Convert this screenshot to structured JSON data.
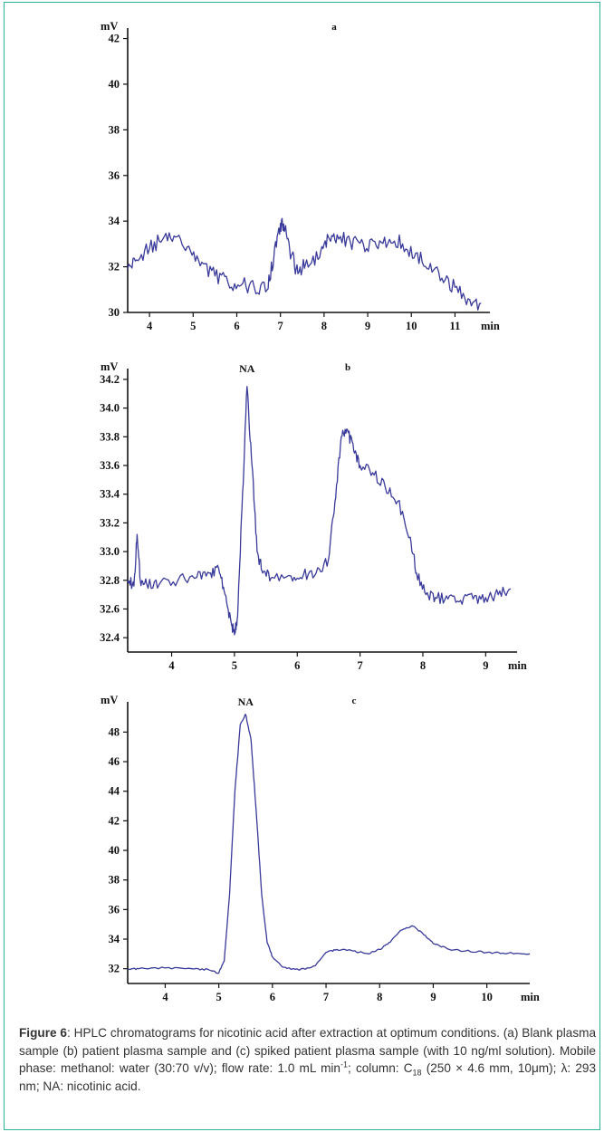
{
  "chart_data": [
    {
      "type": "line",
      "title": "a",
      "y_unit": "mV",
      "x_unit": "min",
      "xlim": [
        3.5,
        11.8
      ],
      "ylim": [
        30,
        42.3
      ],
      "x_ticks": [
        4,
        5,
        6,
        7,
        8,
        9,
        10,
        11
      ],
      "y_ticks": [
        30,
        32,
        34,
        36,
        38,
        40,
        42
      ],
      "annotations": [],
      "series": [
        {
          "x": [
            3.5,
            3.7,
            4.0,
            4.3,
            4.6,
            4.9,
            5.2,
            5.5,
            5.8,
            6.1,
            6.4,
            6.7,
            6.85,
            7.0,
            7.1,
            7.25,
            7.4,
            7.6,
            7.9,
            8.1,
            8.3,
            8.6,
            8.9,
            9.2,
            9.5,
            9.8,
            10.1,
            10.4,
            10.7,
            11.0,
            11.3,
            11.6
          ],
          "y": [
            31.9,
            32.3,
            32.8,
            33.2,
            33.3,
            32.9,
            32.2,
            31.6,
            31.3,
            31.2,
            31.1,
            31.0,
            32.4,
            33.9,
            33.6,
            32.5,
            31.7,
            32.3,
            32.4,
            33.3,
            33.4,
            33.1,
            33.0,
            32.9,
            33.2,
            33.0,
            32.6,
            31.9,
            31.5,
            31.1,
            30.6,
            30.4
          ]
        }
      ]
    },
    {
      "type": "line",
      "title": "b",
      "y_unit": "mV",
      "x_unit": "min",
      "xlim": [
        3.3,
        9.5
      ],
      "ylim": [
        32.3,
        34.25
      ],
      "x_ticks": [
        4,
        5,
        6,
        7,
        8,
        9
      ],
      "y_ticks": [
        32.4,
        32.6,
        32.8,
        33.0,
        33.2,
        33.4,
        33.6,
        33.8,
        34.0,
        34.2
      ],
      "annotations": [
        {
          "text": "NA",
          "x": 5.2,
          "y": 34.2
        }
      ],
      "series": [
        {
          "x": [
            3.3,
            3.4,
            3.45,
            3.5,
            3.6,
            3.8,
            4.1,
            4.4,
            4.6,
            4.75,
            4.85,
            4.95,
            5.0,
            5.05,
            5.12,
            5.2,
            5.28,
            5.36,
            5.45,
            5.6,
            5.9,
            6.1,
            6.3,
            6.5,
            6.6,
            6.7,
            6.8,
            6.9,
            7.0,
            7.2,
            7.4,
            7.6,
            7.8,
            7.9,
            8.05,
            8.2,
            8.4,
            8.6,
            8.8,
            9.0,
            9.2,
            9.4
          ],
          "y": [
            32.8,
            32.76,
            33.12,
            32.8,
            32.78,
            32.77,
            32.8,
            32.82,
            32.85,
            32.88,
            32.7,
            32.5,
            32.42,
            32.55,
            33.3,
            34.15,
            33.6,
            33.0,
            32.85,
            32.82,
            32.83,
            32.84,
            32.85,
            32.95,
            33.35,
            33.8,
            33.85,
            33.7,
            33.6,
            33.55,
            33.45,
            33.35,
            33.1,
            32.85,
            32.7,
            32.68,
            32.67,
            32.66,
            32.67,
            32.68,
            32.7,
            32.74
          ]
        }
      ]
    },
    {
      "type": "line",
      "title": "c",
      "y_unit": "mV",
      "x_unit": "min",
      "xlim": [
        3.3,
        10.8
      ],
      "ylim": [
        31,
        49.8
      ],
      "x_ticks": [
        4,
        5,
        6,
        7,
        8,
        9,
        10
      ],
      "y_ticks": [
        32,
        34,
        36,
        38,
        40,
        42,
        44,
        46,
        48
      ],
      "annotations": [
        {
          "text": "NA",
          "x": 5.5,
          "y": 49.3
        }
      ],
      "series": [
        {
          "x": [
            3.3,
            3.5,
            4.0,
            4.5,
            4.8,
            5.0,
            5.1,
            5.2,
            5.3,
            5.4,
            5.5,
            5.6,
            5.7,
            5.8,
            5.9,
            6.0,
            6.2,
            6.5,
            6.8,
            7.0,
            7.2,
            7.5,
            7.8,
            8.0,
            8.2,
            8.4,
            8.6,
            8.8,
            9.0,
            9.3,
            9.6,
            10.0,
            10.4,
            10.8
          ],
          "y": [
            32.0,
            32.0,
            32.05,
            32.0,
            31.95,
            31.7,
            32.5,
            37.0,
            44.0,
            48.5,
            49.2,
            47.5,
            42.5,
            37.0,
            33.8,
            32.8,
            32.1,
            31.9,
            32.2,
            33.1,
            33.3,
            33.2,
            33.0,
            33.3,
            33.8,
            34.6,
            34.9,
            34.4,
            33.7,
            33.3,
            33.2,
            33.1,
            33.05,
            33.0
          ]
        }
      ]
    }
  ],
  "caption": {
    "label": "Figure 6",
    "text": ": HPLC chromatograms for nicotinic acid after extraction at optimum conditions. (a) Blank plasma sample (b) patient plasma sample and (c) spiked patient plasma sample (with 10 ng/ml solution). Mobile phase: methanol: water (30:70 v/v); flow rate: 1.0 mL min",
    "sup_1": "-1",
    "text_2": "; column: C",
    "sub_1": "18",
    "text_3": " (250 × 4.6 mm, 10μm); λ: 293 nm; NA: nicotinic acid."
  }
}
